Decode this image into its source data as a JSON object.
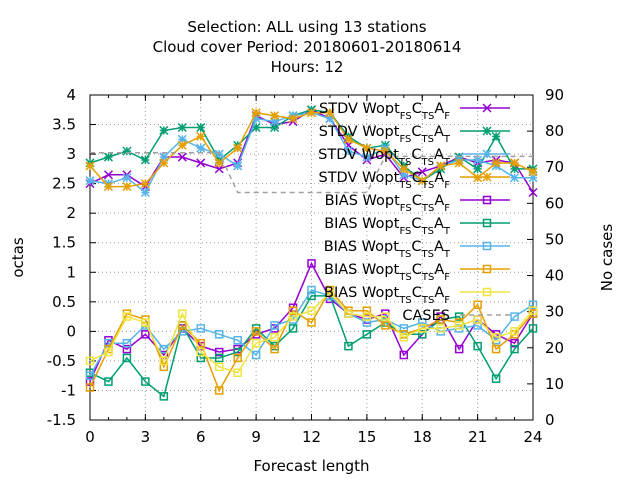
{
  "chart_data": {
    "type": "line",
    "title_lines": [
      "Selection: ALL using    13 stations",
      "Cloud cover   Period: 20180601-20180614",
      "Hours:  12"
    ],
    "xlabel": "Forecast length",
    "ylabel": "octas",
    "y2label": "No cases",
    "xlim": [
      0,
      24
    ],
    "ylim": [
      -1.5,
      4
    ],
    "y2lim": [
      0,
      90
    ],
    "xticks": [
      "0",
      "3",
      "6",
      "9",
      "12",
      "15",
      "18",
      "21",
      "24"
    ],
    "yticks": [
      "-1.5",
      "-1",
      "-0.5",
      "0",
      "0.5",
      "1",
      "1.5",
      "2",
      "2.5",
      "3",
      "3.5",
      "4"
    ],
    "y2ticks": [
      "0",
      "10",
      "20",
      "30",
      "40",
      "50",
      "60",
      "70",
      "80",
      "90"
    ],
    "grid": true,
    "legend_position": "top-right",
    "x": [
      0,
      1,
      2,
      3,
      4,
      5,
      6,
      7,
      8,
      9,
      10,
      11,
      12,
      13,
      14,
      15,
      16,
      17,
      18,
      19,
      20,
      21,
      22,
      23,
      24
    ],
    "series": [
      {
        "name_parts": [
          "STDV Wopt",
          "FS",
          "C",
          "TS",
          "A",
          "F"
        ],
        "color": "#9400d3",
        "marker": "x",
        "axis": "y",
        "values": [
          2.5,
          2.65,
          2.65,
          2.45,
          2.95,
          2.95,
          2.85,
          2.75,
          2.85,
          3.65,
          3.5,
          3.55,
          3.75,
          3.6,
          3.15,
          2.9,
          3.0,
          2.6,
          2.7,
          2.8,
          2.95,
          2.85,
          2.9,
          2.85,
          2.35
        ]
      },
      {
        "name_parts": [
          "STDV Wopt",
          "FS",
          "C",
          "TS",
          "A",
          "T"
        ],
        "color": "#009e73",
        "marker": "star",
        "axis": "y",
        "values": [
          2.85,
          2.95,
          3.05,
          2.9,
          3.4,
          3.45,
          3.45,
          2.9,
          3.15,
          3.45,
          3.45,
          3.65,
          3.75,
          3.7,
          3.3,
          3.1,
          3.15,
          2.8,
          2.55,
          2.75,
          2.95,
          2.75,
          3.3,
          2.75,
          2.75
        ]
      },
      {
        "name_parts": [
          "STDV Wopt",
          "TS",
          "C",
          "TS",
          "A",
          "T"
        ],
        "color": "#56b4e9",
        "marker": "star",
        "axis": "y",
        "values": [
          2.55,
          2.5,
          2.6,
          2.35,
          2.95,
          3.25,
          3.1,
          3.0,
          2.8,
          3.6,
          3.55,
          3.65,
          3.7,
          3.6,
          3.05,
          2.95,
          3.1,
          2.65,
          2.55,
          2.8,
          2.9,
          2.9,
          2.8,
          2.6,
          2.6
        ]
      },
      {
        "name_parts": [
          "STDV Wopt",
          "TS",
          "C",
          "TS",
          "A",
          "F"
        ],
        "color": "#e69f00",
        "marker": "star",
        "axis": "y",
        "values": [
          2.8,
          2.45,
          2.45,
          2.5,
          2.85,
          3.15,
          3.3,
          2.85,
          3.1,
          3.7,
          3.65,
          3.6,
          3.7,
          3.7,
          3.25,
          3.1,
          3.05,
          2.75,
          2.55,
          2.8,
          2.85,
          2.6,
          2.85,
          2.85,
          2.7
        ]
      },
      {
        "name_parts": [
          "BIAS Wopt",
          "FS",
          "C",
          "TS",
          "A",
          "F"
        ],
        "color": "#9400d3",
        "marker": "square",
        "axis": "y",
        "values": [
          -0.85,
          -0.15,
          -0.3,
          -0.05,
          -0.4,
          0.05,
          -0.25,
          -0.35,
          -0.3,
          -0.05,
          0.05,
          0.4,
          1.15,
          0.55,
          0.3,
          0.2,
          0.3,
          -0.4,
          -0.05,
          0.25,
          -0.3,
          0.2,
          -0.05,
          -0.2,
          0.3
        ]
      },
      {
        "name_parts": [
          "BIAS Wopt",
          "FS",
          "C",
          "TS",
          "A",
          "T"
        ],
        "color": "#009e73",
        "marker": "square",
        "axis": "y",
        "values": [
          -0.7,
          -0.85,
          -0.45,
          -0.85,
          -1.1,
          0.1,
          -0.45,
          -0.45,
          -0.35,
          0.05,
          -0.25,
          0.05,
          0.6,
          0.6,
          -0.25,
          -0.05,
          0.15,
          -0.05,
          -0.05,
          0.2,
          0.25,
          -0.25,
          -0.8,
          -0.3,
          0.05
        ]
      },
      {
        "name_parts": [
          "BIAS Wopt",
          "TS",
          "C",
          "TS",
          "A",
          "T"
        ],
        "color": "#56b4e9",
        "marker": "square",
        "axis": "y",
        "values": [
          -0.75,
          -0.2,
          -0.2,
          0.1,
          -0.3,
          0.0,
          0.05,
          -0.05,
          -0.15,
          -0.4,
          0.1,
          0.2,
          0.7,
          0.6,
          0.3,
          0.15,
          0.2,
          0.05,
          0.15,
          0.0,
          0.05,
          0.1,
          -0.15,
          0.25,
          0.45
        ]
      },
      {
        "name_parts": [
          "BIAS Wopt",
          "TS",
          "C",
          "TS",
          "A",
          "F"
        ],
        "color": "#e69f00",
        "marker": "square",
        "axis": "y",
        "values": [
          -0.95,
          -0.3,
          0.3,
          0.2,
          -0.6,
          0.1,
          -0.2,
          -1.0,
          -0.45,
          0.0,
          -0.3,
          0.35,
          0.15,
          0.7,
          0.35,
          0.35,
          0.1,
          -0.05,
          0.05,
          0.2,
          0.15,
          0.45,
          -0.3,
          -0.05,
          0.3
        ]
      },
      {
        "name_parts": [
          "BIAS Wopt",
          "TS",
          "C",
          "TS",
          "A",
          "F"
        ],
        "color": "#f0e442",
        "marker": "square",
        "axis": "y",
        "values": [
          -0.5,
          -0.35,
          0.25,
          0.15,
          -0.5,
          0.3,
          -0.35,
          -0.6,
          -0.7,
          -0.2,
          -0.1,
          0.25,
          0.35,
          0.65,
          0.3,
          0.25,
          0.25,
          -0.1,
          0.05,
          0.05,
          0.1,
          0.2,
          -0.1,
          0.0,
          0.35
        ]
      },
      {
        "name_parts": [
          "CASES"
        ],
        "color": "#a0a0a0",
        "marker": "none",
        "dashed": true,
        "axis": "y2",
        "values": [
          74,
          74,
          74,
          74,
          74,
          74,
          74,
          74,
          63,
          63,
          63,
          63,
          63,
          63,
          63,
          63,
          73,
          73,
          73,
          73,
          73,
          73,
          73,
          73,
          73
        ]
      }
    ]
  }
}
